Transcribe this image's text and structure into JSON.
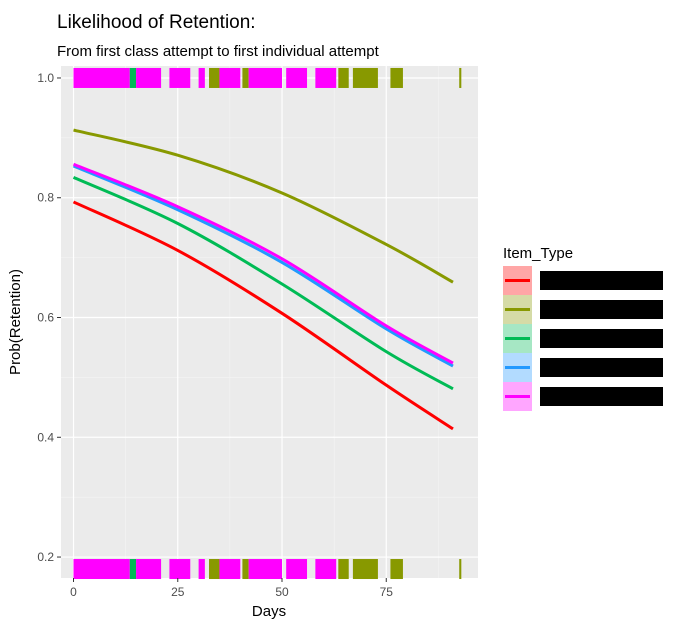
{
  "chart_data": {
    "type": "line",
    "title": "Likelihood of Retention:",
    "subtitle": "From first class attempt to first individual attempt",
    "xlabel": "Days",
    "ylabel": "Prob(Retention)",
    "xlim": [
      -3,
      97
    ],
    "ylim": [
      0.165,
      1.02
    ],
    "x_ticks": [
      0,
      25,
      50,
      75
    ],
    "y_ticks": [
      0.2,
      0.4,
      0.6,
      0.8,
      1.0
    ],
    "x_tick_labels": [
      "0",
      "25",
      "50",
      "75"
    ],
    "y_tick_labels": [
      "0.2",
      "0.4",
      "0.6",
      "0.8",
      "1.0"
    ],
    "grid": true,
    "legend": {
      "title": "Item_Type",
      "position": "right",
      "labels_redacted": true
    },
    "series": [
      {
        "key": "s1",
        "color": "#FF0000",
        "x": [
          0,
          25,
          50,
          75,
          91
        ],
        "y": [
          0.793,
          0.712,
          0.607,
          0.487,
          0.414
        ]
      },
      {
        "key": "s2",
        "color": "#889900",
        "x": [
          0,
          25,
          50,
          75,
          91
        ],
        "y": [
          0.913,
          0.871,
          0.808,
          0.722,
          0.659
        ]
      },
      {
        "key": "s3",
        "color": "#00BB55",
        "x": [
          0,
          25,
          50,
          75,
          91
        ],
        "y": [
          0.834,
          0.757,
          0.656,
          0.543,
          0.481
        ]
      },
      {
        "key": "s4",
        "color": "#2299FF",
        "x": [
          0,
          25,
          50,
          75,
          91
        ],
        "y": [
          0.853,
          0.78,
          0.692,
          0.581,
          0.519
        ]
      },
      {
        "key": "s5",
        "color": "#FF00FF",
        "x": [
          0,
          25,
          50,
          75,
          91
        ],
        "y": [
          0.856,
          0.785,
          0.698,
          0.586,
          0.524
        ]
      }
    ],
    "rug": {
      "y_values": [
        1.0,
        0.18
      ],
      "segments": [
        {
          "x0": 0,
          "x1": 13.5,
          "color": "#FF00FF"
        },
        {
          "x0": 13.5,
          "x1": 15,
          "color": "#00BB55"
        },
        {
          "x0": 15,
          "x1": 21,
          "color": "#FF00FF"
        },
        {
          "x0": 23,
          "x1": 28,
          "color": "#FF00FF"
        },
        {
          "x0": 30,
          "x1": 31.5,
          "color": "#FF00FF"
        },
        {
          "x0": 32.5,
          "x1": 35,
          "color": "#889900"
        },
        {
          "x0": 35,
          "x1": 40,
          "color": "#FF00FF"
        },
        {
          "x0": 40.5,
          "x1": 42,
          "color": "#889900"
        },
        {
          "x0": 42,
          "x1": 50,
          "color": "#FF00FF"
        },
        {
          "x0": 51,
          "x1": 56,
          "color": "#FF00FF"
        },
        {
          "x0": 58,
          "x1": 63,
          "color": "#FF00FF"
        },
        {
          "x0": 63.5,
          "x1": 66,
          "color": "#889900"
        },
        {
          "x0": 67,
          "x1": 73,
          "color": "#889900"
        },
        {
          "x0": 76,
          "x1": 79,
          "color": "#889900"
        },
        {
          "x0": 92.5,
          "x1": 93,
          "color": "#889900"
        }
      ]
    }
  }
}
